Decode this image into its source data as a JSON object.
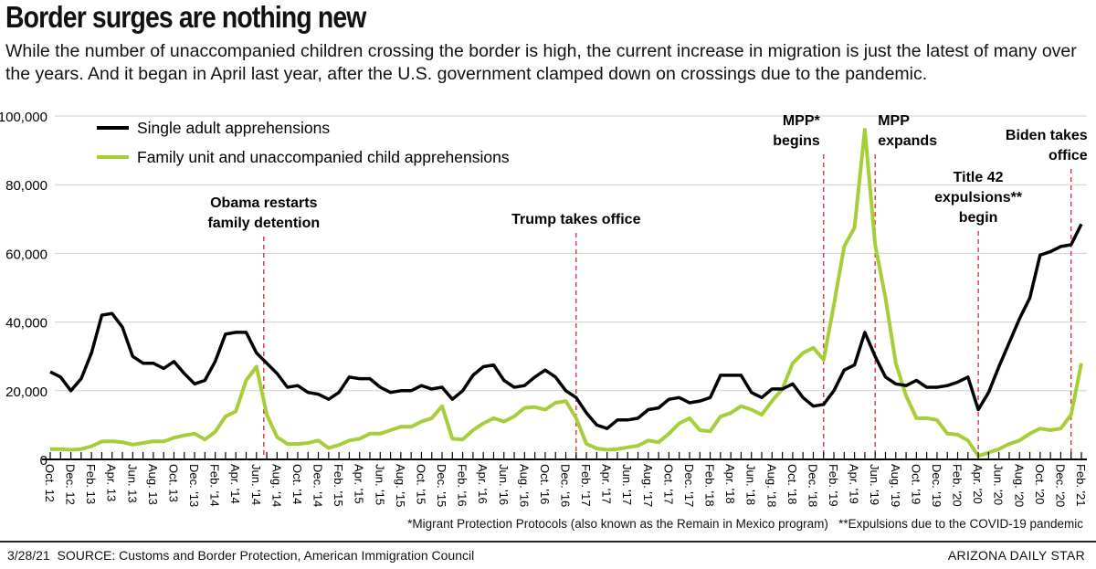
{
  "header": {
    "title": "Border surges are nothing new",
    "subtitle": "While the number of unaccompanied children crossing the border is high, the current increase in migration is just the latest of many over the years. And it began in April last year, after the U.S. government clamped down on crossings due to the pandemic."
  },
  "chart_data": {
    "type": "line",
    "title": "",
    "xlabel": "",
    "ylabel": "",
    "ylim": [
      0,
      100000
    ],
    "yticks": [
      "0",
      "20,000",
      "40,000",
      "60,000",
      "80,000",
      "100,000"
    ],
    "ytick_values": [
      0,
      20000,
      40000,
      60000,
      80000,
      100000
    ],
    "grid": true,
    "legend_position": "top-left",
    "x_range": [
      "Oct. 2012",
      "Feb. 2021"
    ],
    "x_frequency": "monthly",
    "xtick_labels": [
      "Oct. 12",
      "Dec. 12",
      "Feb. 13",
      "Apr. 13",
      "Jun. 13",
      "Aug. 13",
      "Oct. 13",
      "Dec. '13",
      "Feb. '14",
      "Apr. '14",
      "Jun. '14",
      "Aug. '14",
      "Oct. '14",
      "Dec. '14",
      "Feb. '15",
      "Apr. '15",
      "Jun. '15",
      "Aug. '15",
      "Oct. '15",
      "Dec. '15",
      "Feb. '16",
      "Apr. '16",
      "Jun. '16",
      "Aug. '16",
      "Oct. '16",
      "Dec. '16",
      "Feb. '17",
      "Apr. '17",
      "Jun. '17",
      "Aug. '17",
      "Oct. '17",
      "Dec. '17",
      "Feb. '18",
      "Apr. '18",
      "Jun. '18",
      "Aug. '18",
      "Oct. '18",
      "Dec. '18",
      "Feb. '19",
      "Apr. '19",
      "Jun. '19",
      "Aug. '19",
      "Oct. '19",
      "Dec. '19",
      "Feb. '20",
      "Apr. '20",
      "Jun. '20",
      "Aug. '20",
      "Oct. '20",
      "Dec. '20",
      "Feb. '21"
    ],
    "series": [
      {
        "name": "Single adult apprehensions",
        "color": "#000000",
        "values": [
          25500,
          24000,
          20000,
          23500,
          31000,
          42000,
          42500,
          38500,
          30000,
          28000,
          28000,
          26500,
          28500,
          25000,
          22000,
          23000,
          28500,
          36500,
          37000,
          37000,
          31000,
          28000,
          25000,
          21000,
          21500,
          19500,
          19000,
          17500,
          19500,
          24000,
          23500,
          23500,
          21000,
          19500,
          20000,
          20000,
          21500,
          20500,
          21000,
          17500,
          20000,
          24500,
          27000,
          27500,
          23000,
          21000,
          21500,
          24000,
          26000,
          24000,
          20000,
          18000,
          13500,
          10000,
          9000,
          11500,
          11500,
          12000,
          14500,
          15000,
          17500,
          18000,
          16500,
          17000,
          18000,
          24500,
          24500,
          24500,
          19500,
          18000,
          20500,
          20500,
          22000,
          18000,
          15500,
          16000,
          20000,
          26000,
          27500,
          37000,
          30000,
          24000,
          22000,
          21500,
          23000,
          21000,
          21000,
          21500,
          22500,
          24000,
          14500,
          19500,
          27000,
          34000,
          41000,
          47000,
          59500,
          60500,
          62000,
          62500,
          68500
        ]
      },
      {
        "name": "Family unit and unaccompanied child apprehensions",
        "color": "#a6ce39",
        "values": [
          3000,
          3000,
          2800,
          3000,
          3800,
          5200,
          5300,
          5000,
          4300,
          4800,
          5300,
          5200,
          6300,
          7000,
          7500,
          5800,
          8000,
          12500,
          14000,
          23000,
          27000,
          13000,
          6500,
          4500,
          4500,
          4800,
          5500,
          3300,
          4200,
          5500,
          6000,
          7500,
          7500,
          8500,
          9500,
          9500,
          11000,
          12000,
          15500,
          6000,
          5800,
          8500,
          10500,
          12000,
          11000,
          12500,
          15000,
          15200,
          14500,
          16500,
          17000,
          12000,
          4500,
          3200,
          2800,
          3000,
          3500,
          4000,
          5500,
          5000,
          7500,
          10500,
          12000,
          8500,
          8200,
          12500,
          13500,
          15500,
          14500,
          13000,
          17000,
          20500,
          28000,
          31000,
          32500,
          29000,
          45000,
          62000,
          67500,
          96000,
          62500,
          47000,
          28000,
          18500,
          12000,
          12000,
          11500,
          7500,
          7200,
          5500,
          1000,
          2000,
          3000,
          4500,
          5500,
          7500,
          9000,
          8500,
          9000,
          13000,
          28000
        ]
      }
    ],
    "annotations": [
      {
        "month_index": 20,
        "lines": [
          "Obama restarts",
          "family detention"
        ]
      },
      {
        "month_index": 51,
        "lines": [
          "Trump takes office"
        ]
      },
      {
        "month_index": 75,
        "lines": [
          "MPP*",
          "begins"
        ]
      },
      {
        "month_index": 80,
        "lines": [
          "MPP",
          "expands"
        ]
      },
      {
        "month_index": 90,
        "lines": [
          "Title 42",
          "expulsions**",
          "begin"
        ]
      },
      {
        "month_index": 99,
        "lines": [
          "Biden takes",
          "office"
        ]
      }
    ],
    "annotation_line_color": "#d9263b"
  },
  "footer": {
    "footnote": "*Migrant Protection Protocols (also known as the Remain in Mexico program)   **Expulsions due to the COVID-19 pandemic",
    "date_source": "3/28/21  SOURCE: Customs and Border Protection, American Immigration Council",
    "credit": "ARIZONA DAILY STAR"
  }
}
